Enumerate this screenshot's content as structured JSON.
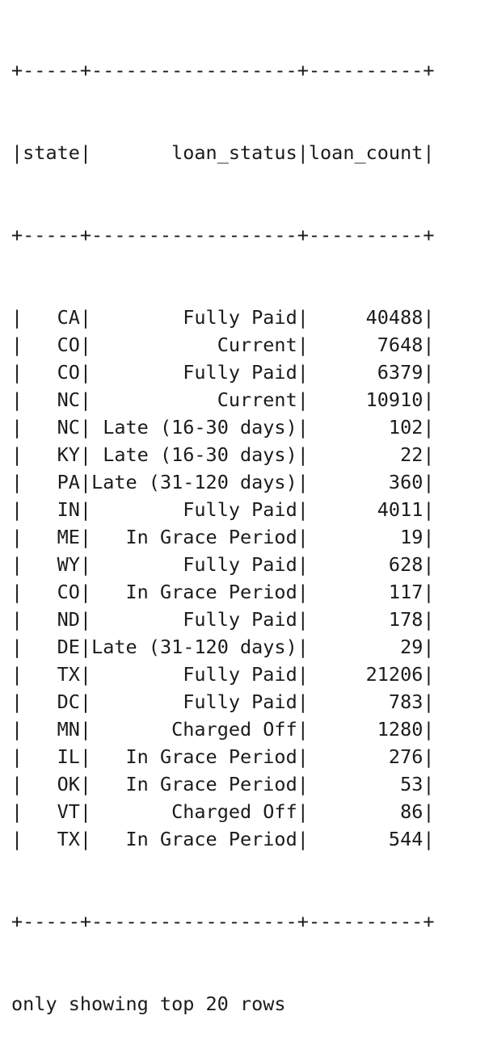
{
  "table": {
    "columns": [
      "state",
      "loan_status",
      "loan_count"
    ],
    "rows": [
      [
        "CA",
        "Fully Paid",
        "40488"
      ],
      [
        "CO",
        "Current",
        "7648"
      ],
      [
        "CO",
        "Fully Paid",
        "6379"
      ],
      [
        "NC",
        "Current",
        "10910"
      ],
      [
        "NC",
        "Late (16-30 days)",
        "102"
      ],
      [
        "KY",
        "Late (16-30 days)",
        "22"
      ],
      [
        "PA",
        "Late (31-120 days)",
        "360"
      ],
      [
        "IN",
        "Fully Paid",
        "4011"
      ],
      [
        "ME",
        "In Grace Period",
        "19"
      ],
      [
        "WY",
        "Fully Paid",
        "628"
      ],
      [
        "CO",
        "In Grace Period",
        "117"
      ],
      [
        "ND",
        "Fully Paid",
        "178"
      ],
      [
        "DE",
        "Late (31-120 days)",
        "29"
      ],
      [
        "TX",
        "Fully Paid",
        "21206"
      ],
      [
        "DC",
        "Fully Paid",
        "783"
      ],
      [
        "MN",
        "Charged Off",
        "1280"
      ],
      [
        "IL",
        "In Grace Period",
        "276"
      ],
      [
        "OK",
        "In Grace Period",
        "53"
      ],
      [
        "VT",
        "Charged Off",
        "86"
      ],
      [
        "TX",
        "In Grace Period",
        "544"
      ]
    ]
  },
  "footer": "only showing top 20 rows"
}
